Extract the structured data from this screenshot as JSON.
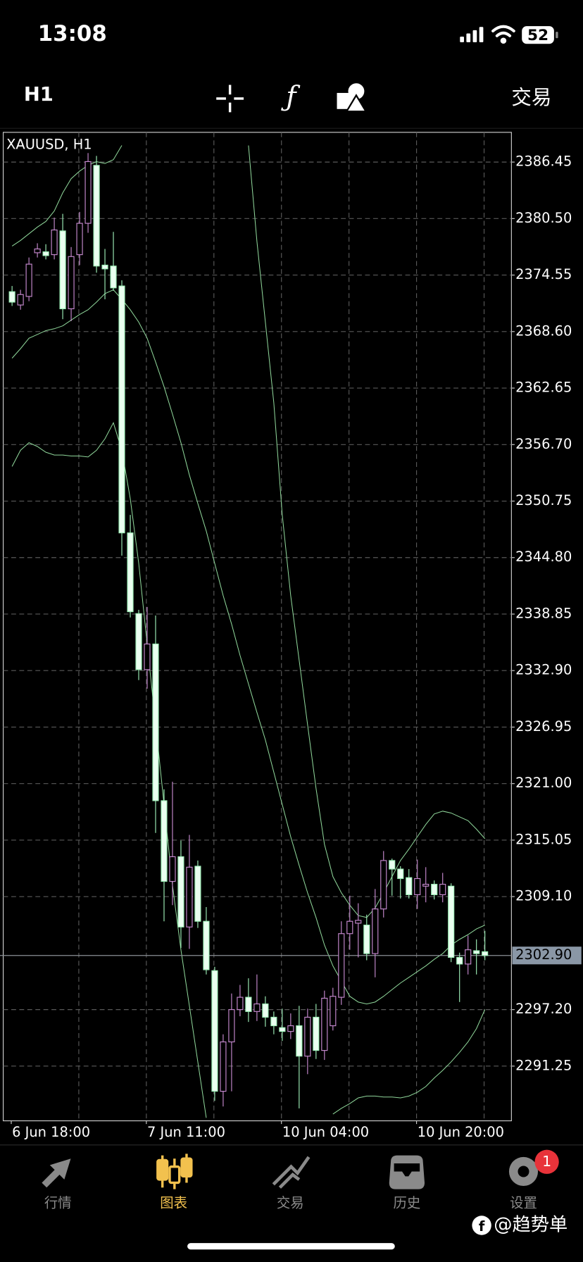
{
  "status_bar": {
    "time": "13:08",
    "battery": 52
  },
  "toolbar": {
    "timeframe": "H1",
    "trade": "交易"
  },
  "chart_data": {
    "type": "candlestick",
    "title": "XAUUSD, H1",
    "categories": [
      "6 Jun 18:00",
      null,
      null,
      null,
      null,
      null,
      null,
      null,
      null,
      null,
      null,
      null,
      null,
      null,
      null,
      null,
      "7 Jun 11:00",
      null,
      null,
      null,
      null,
      null,
      null,
      null,
      null,
      null,
      null,
      null,
      null,
      null,
      null,
      null,
      "10 Jun 04:00",
      null,
      null,
      null,
      null,
      null,
      null,
      null,
      null,
      null,
      null,
      null,
      null,
      null,
      null,
      null,
      "10 Jun 20:00",
      null,
      null,
      null,
      null,
      null,
      null,
      null,
      null
    ],
    "open": [
      2372.8,
      2371.4,
      2372.3,
      2376.9,
      2377.0,
      2376.7,
      2379.2,
      2371.0,
      2376.7,
      2380.0,
      2386.1,
      2375.6,
      2375.5,
      2373.4,
      2347.4,
      2338.9,
      2333.0,
      2335.7,
      2319.2,
      2310.7,
      2313.3,
      2305.9,
      2312.3,
      2306.5,
      2301.3,
      2288.6,
      2293.8,
      2297.2,
      2298.5,
      2297.0,
      2297.8,
      2296.4,
      2295.3,
      2294.9,
      2295.5,
      2292.3,
      2296.4,
      2292.9,
      2295.5,
      2298.5,
      2305.2,
      2306.3,
      2306.1,
      2303.1,
      2307.8,
      2312.9,
      2312.0,
      2311.1,
      2309.3,
      2310.2,
      2310.4,
      2309.3,
      2310.2,
      2302.7,
      2302.0,
      2303.4,
      2303.3
    ],
    "high": [
      2373.4,
      2373.0,
      2376.4,
      2377.9,
      2377.8,
      2380.6,
      2381.0,
      2377.5,
      2381.2,
      2387.4,
      2387.1,
      2377.3,
      2379.1,
      2374.0,
      2349.3,
      2339.3,
      2339.6,
      2338.7,
      2320.4,
      2321.2,
      2315.0,
      2315.6,
      2312.9,
      2308.0,
      2301.7,
      2294.6,
      2298.9,
      2299.8,
      2300.5,
      2300.9,
      2298.6,
      2297.0,
      2297.3,
      2296.8,
      2297.6,
      2297.3,
      2297.8,
      2299.2,
      2299.5,
      2306.5,
      2309.2,
      2308.4,
      2307.2,
      2309.9,
      2313.9,
      2313.1,
      2312.3,
      2312.0,
      2313.0,
      2312.2,
      2310.8,
      2311.6,
      2310.5,
      2303.2,
      2305.0,
      2304.6,
      2305.5
    ],
    "low": [
      2371.3,
      2370.9,
      2371.8,
      2376.4,
      2376.2,
      2376.2,
      2369.9,
      2369.7,
      2375.6,
      2379.0,
      2374.8,
      2372.0,
      2372.9,
      2345.0,
      2338.5,
      2331.9,
      2331.0,
      2315.8,
      2306.5,
      2308.2,
      2303.7,
      2303.6,
      2305.8,
      2300.9,
      2287.6,
      2287.0,
      2288.6,
      2296.5,
      2295.9,
      2296.0,
      2295.4,
      2294.6,
      2293.9,
      2294.1,
      2286.8,
      2290.4,
      2292.0,
      2291.9,
      2295.0,
      2297.7,
      2303.5,
      2302.7,
      2302.4,
      2300.6,
      2306.9,
      2309.2,
      2308.9,
      2308.9,
      2307.8,
      2308.5,
      2308.8,
      2308.5,
      2302.2,
      2298.0,
      2300.9,
      2300.9,
      2302.4
    ],
    "close": [
      2371.7,
      2372.5,
      2375.7,
      2377.3,
      2376.6,
      2379.3,
      2371.0,
      2376.5,
      2380.0,
      2386.5,
      2375.5,
      2375.2,
      2373.2,
      2347.4,
      2339.1,
      2333.0,
      2335.7,
      2319.2,
      2310.7,
      2313.3,
      2305.9,
      2312.2,
      2306.5,
      2301.4,
      2288.6,
      2293.8,
      2297.2,
      2298.5,
      2297.0,
      2297.8,
      2296.4,
      2295.5,
      2294.9,
      2295.5,
      2292.3,
      2296.4,
      2292.9,
      2298.4,
      2298.6,
      2305.2,
      2306.5,
      2306.6,
      2303.1,
      2307.8,
      2312.9,
      2312.0,
      2311.0,
      2309.3,
      2311.0,
      2310.4,
      2309.3,
      2310.4,
      2302.7,
      2302.0,
      2303.5,
      2303.1,
      2302.9
    ],
    "up_color": "#c78ad0",
    "down_color": "#9ef0b8",
    "down_fill": "#eafff0",
    "indicators": [
      {
        "color": "#8fd69a",
        "values": [
          2377.6,
          2378.2,
          2378.9,
          2379.6,
          2380.2,
          2381.3,
          2383.2,
          2384.7,
          2385.5,
          2386.1,
          2386.5,
          2386.3,
          2386.7,
          2388.2,
          null,
          null,
          null,
          null,
          null,
          null,
          null,
          null,
          null,
          null,
          null,
          null,
          null,
          null,
          2388.2,
          2378.1,
          2369.6,
          2361.1,
          2349.3,
          2340.8,
          2334.0,
          2327.2,
          2320.5,
          2314.6,
          2311.2,
          2309.5,
          2308.2,
          2307.1,
          2306.9,
          2307.9,
          2309.5,
          2311.2,
          2312.9,
          2314.1,
          2315.4,
          2316.7,
          2317.8,
          2318.1,
          2317.9,
          2317.5,
          2317.1,
          2316.2,
          2315.2
        ]
      },
      {
        "color": "#8fd69a",
        "values": [
          2365.8,
          2366.8,
          2367.9,
          2368.3,
          2368.7,
          2368.9,
          2369.2,
          2369.8,
          2370.4,
          2370.9,
          2371.7,
          2372.6,
          2373.0,
          2372.0,
          2370.9,
          2369.6,
          2367.9,
          2365.4,
          2362.8,
          2359.9,
          2356.9,
          2353.5,
          2350.5,
          2347.6,
          2344.2,
          2340.8,
          2337.8,
          2334.5,
          2331.5,
          2328.5,
          2325.6,
          2322.2,
          2318.8,
          2315.4,
          2312.4,
          2309.5,
          2306.9,
          2304.0,
          2301.8,
          2300.2,
          2298.6,
          2298.0,
          2297.8,
          2298.0,
          2298.6,
          2299.3,
          2300.0,
          2300.6,
          2301.2,
          2301.8,
          2302.5,
          2303.1,
          2304.0,
          2304.6,
          2305.1,
          2305.7,
          2306.1
        ]
      },
      {
        "color": "#8fd69a",
        "values": [
          2354.4,
          2356.1,
          2356.9,
          2356.5,
          2355.9,
          2355.6,
          2355.6,
          2355.5,
          2355.5,
          2355.4,
          2356.1,
          2357.3,
          2359.0,
          2356.1,
          2351.0,
          2344.2,
          2335.7,
          2327.3,
          2318.8,
          2310.3,
          2303.5,
          2297.6,
          2291.7,
          2285.8,
          null,
          null,
          null,
          null,
          null,
          null,
          null,
          null,
          null,
          null,
          null,
          null,
          null,
          null,
          2286.2,
          2286.8,
          2287.3,
          2287.9,
          2288.1,
          2288.1,
          2288.0,
          2288.0,
          2287.9,
          2288.1,
          2288.5,
          2289.1,
          2290.0,
          2290.8,
          2291.7,
          2292.7,
          2293.8,
          2295.2,
          2297.2
        ]
      }
    ],
    "current_price": {
      "value": 2302.9,
      "label": "2302.90"
    },
    "ylim": [
      2285.49,
      2389.58
    ],
    "yticks": [
      2386.45,
      {
        "value": 2380.5,
        "label": "2380.50"
      },
      2374.55,
      {
        "value": 2368.6,
        "label": "2368.60"
      },
      2362.65,
      {
        "value": 2356.7,
        "label": "2356.70"
      },
      2350.75,
      {
        "value": 2344.8,
        "label": "2344.80"
      },
      2338.85,
      {
        "value": 2332.9,
        "label": "2332.90"
      },
      2326.95,
      {
        "value": 2321,
        "label": "2321.00"
      },
      2315.05,
      {
        "value": 2309.1,
        "label": "2309.10"
      },
      {
        "value": 2297.2,
        "label": "2297.20"
      },
      2291.25
    ],
    "grid": true
  },
  "tab_bar": {
    "tabs": [
      "行情",
      "图表",
      "交易",
      "历史",
      "设置"
    ],
    "active": 1,
    "badge": 1
  },
  "watermark": "@趋势单"
}
